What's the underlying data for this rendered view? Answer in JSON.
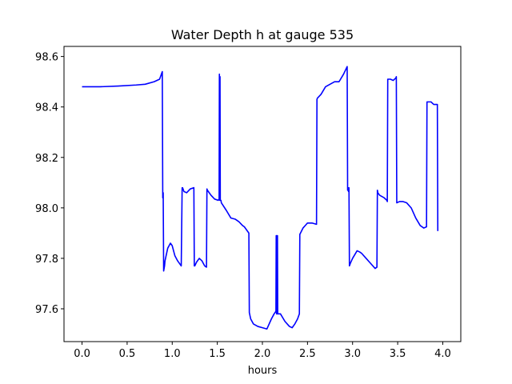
{
  "chart_data": {
    "type": "line",
    "title": "Water Depth h at gauge 535",
    "xlabel": "hours",
    "ylabel": "",
    "xlim": [
      -0.2,
      4.2
    ],
    "ylim": [
      97.47,
      98.64
    ],
    "xticks": [
      0.0,
      0.5,
      1.0,
      1.5,
      2.0,
      2.5,
      3.0,
      3.5,
      4.0
    ],
    "xtick_labels": [
      "0.0",
      "0.5",
      "1.0",
      "1.5",
      "2.0",
      "2.5",
      "3.0",
      "3.5",
      "4.0"
    ],
    "yticks": [
      97.6,
      97.8,
      98.0,
      98.2,
      98.4,
      98.6
    ],
    "ytick_labels": [
      "97.6",
      "97.8",
      "98.0",
      "98.2",
      "98.4",
      "98.6"
    ],
    "grid": false,
    "series": [
      {
        "color": "#0000ff",
        "x": [
          0.0,
          0.2,
          0.4,
          0.6,
          0.7,
          0.8,
          0.86,
          0.89,
          0.895,
          0.9,
          0.905,
          0.91,
          0.915,
          0.92,
          0.95,
          0.98,
          1.0,
          1.03,
          1.06,
          1.1,
          1.11,
          1.115,
          1.13,
          1.16,
          1.2,
          1.24,
          1.245,
          1.25,
          1.27,
          1.3,
          1.33,
          1.36,
          1.38,
          1.385,
          1.39,
          1.43,
          1.47,
          1.51,
          1.52,
          1.523,
          1.526,
          1.53,
          1.533,
          1.536,
          1.54,
          1.545,
          1.6,
          1.65,
          1.7,
          1.74,
          1.78,
          1.8,
          1.83,
          1.85,
          1.855,
          1.87,
          1.9,
          1.95,
          2.0,
          2.05,
          2.1,
          2.13,
          2.15,
          2.153,
          2.157,
          2.16,
          2.163,
          2.167,
          2.17,
          2.2,
          2.25,
          2.3,
          2.33,
          2.36,
          2.39,
          2.41,
          2.415,
          2.45,
          2.5,
          2.55,
          2.6,
          2.605,
          2.61,
          2.65,
          2.7,
          2.75,
          2.8,
          2.85,
          2.9,
          2.94,
          2.945,
          2.95,
          2.955,
          2.96,
          2.965,
          2.97,
          2.975,
          3.0,
          3.05,
          3.08,
          3.1,
          3.15,
          3.2,
          3.25,
          3.27,
          3.275,
          3.28,
          3.3,
          3.35,
          3.38,
          3.385,
          3.39,
          3.42,
          3.45,
          3.48,
          3.485,
          3.49,
          3.52,
          3.56,
          3.6,
          3.65,
          3.7,
          3.75,
          3.79,
          3.82,
          3.825,
          3.83,
          3.87,
          3.9,
          3.94,
          3.945,
          3.95
        ],
        "y": [
          98.48,
          98.48,
          98.483,
          98.487,
          98.49,
          98.5,
          98.51,
          98.54,
          98.04,
          98.06,
          97.75,
          97.76,
          97.77,
          97.79,
          97.84,
          97.86,
          97.85,
          97.81,
          97.79,
          97.77,
          98.08,
          98.08,
          98.065,
          98.06,
          98.075,
          98.08,
          97.77,
          97.77,
          97.785,
          97.8,
          97.79,
          97.77,
          97.765,
          98.075,
          98.07,
          98.05,
          98.035,
          98.03,
          98.035,
          98.53,
          98.03,
          98.52,
          98.03,
          98.03,
          98.03,
          98.02,
          97.99,
          97.96,
          97.955,
          97.945,
          97.93,
          97.925,
          97.91,
          97.9,
          97.585,
          97.56,
          97.54,
          97.53,
          97.525,
          97.52,
          97.56,
          97.58,
          97.59,
          97.89,
          97.58,
          97.89,
          97.58,
          97.89,
          97.58,
          97.58,
          97.55,
          97.53,
          97.525,
          97.54,
          97.56,
          97.58,
          97.895,
          97.92,
          97.94,
          97.94,
          97.935,
          98.43,
          98.435,
          98.45,
          98.48,
          98.49,
          98.5,
          98.5,
          98.53,
          98.56,
          98.07,
          98.08,
          98.065,
          98.08,
          97.77,
          97.775,
          97.78,
          97.8,
          97.83,
          97.825,
          97.82,
          97.8,
          97.78,
          97.76,
          97.765,
          98.07,
          98.06,
          98.05,
          98.04,
          98.03,
          98.025,
          98.51,
          98.51,
          98.505,
          98.515,
          98.52,
          98.02,
          98.025,
          98.025,
          98.02,
          98.0,
          97.96,
          97.93,
          97.92,
          97.925,
          98.42,
          98.42,
          98.42,
          98.41,
          98.41,
          97.91,
          97.91
        ]
      }
    ]
  }
}
